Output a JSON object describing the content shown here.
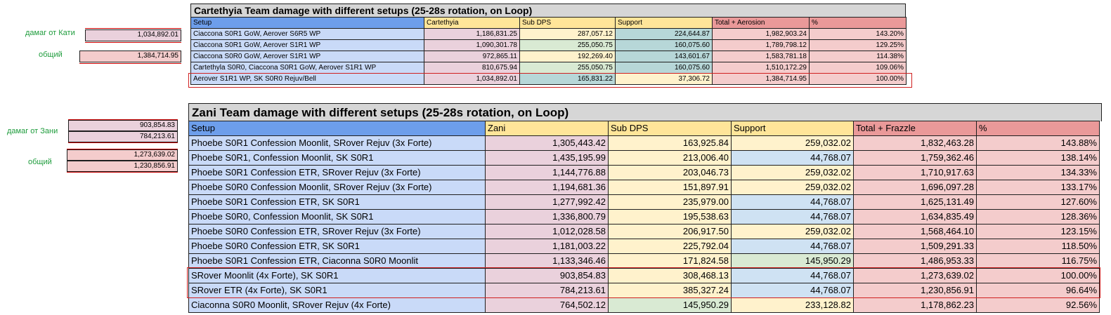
{
  "side": {
    "cart_damage_label": "дамаг от Кати",
    "cart_damage_value": "1,034,892.01",
    "cart_total_label": "общий",
    "cart_total_value": "1,384,714.95",
    "zani_damage_label": "дамаг от Зани",
    "zani_damage_values": [
      "903,854.83",
      "784,213.61"
    ],
    "zani_total_label": "общий",
    "zani_total_values": [
      "1,273,639.02",
      "1,230,856.91"
    ]
  },
  "cart_table": {
    "title": "Cartethyia Team damage with different setups (25-28s rotation, on Loop)",
    "headers": [
      "Setup",
      "Cartethyia",
      "Sub DPS",
      "Support",
      "Total + Aerosion",
      "%"
    ],
    "rows": [
      [
        "Ciaccona S0R1 GoW, Aerover S6R5 WP",
        "1,186,831.25",
        "287,057.12",
        "224,644.87",
        "1,982,903.24",
        "143.20%"
      ],
      [
        "Ciaccona S0R1 GoW, Aerover S1R1 WP",
        "1,090,301.78",
        "255,050.75",
        "160,075.60",
        "1,789,798.12",
        "129.25%"
      ],
      [
        "Ciaccona S0R0 GoW, Aerover S1R1 WP",
        "972,865.11",
        "192,269.40",
        "143,601.67",
        "1,583,781.18",
        "114.38%"
      ],
      [
        "Cartethyla S0R0, Ciaccona S0R1 GoW, Aerover S1R1 WP",
        "810,675.94",
        "255,050.75",
        "160,075.60",
        "1,510,172.29",
        "109.06%"
      ],
      [
        "Aerover S1R1 WP, SK S0R0 Rejuv/Bell",
        "1,034,892.01",
        "165,831.22",
        "37,306.72",
        "1,384,714.95",
        "100.00%"
      ]
    ]
  },
  "zani_table": {
    "title": "Zani Team damage with different setups (25-28s rotation, on Loop)",
    "headers": [
      "Setup",
      "Zani",
      "Sub DPS",
      "Support",
      "Total + Frazzle",
      "%"
    ],
    "rows": [
      [
        "Phoebe S0R1 Confession Moonlit, SRover Rejuv (3x Forte)",
        "1,305,443.42",
        "163,925.84",
        "259,032.02",
        "1,832,463.28",
        "143.88%"
      ],
      [
        "Phoebe S0R1, Confession Moonlit, SK S0R1",
        "1,435,195.99",
        "213,006.40",
        "44,768.07",
        "1,759,362.46",
        "138.14%"
      ],
      [
        "Phoebe S0R1 Confession ETR, SRover Rejuv (3x Forte)",
        "1,144,776.88",
        "203,046.73",
        "259,032.02",
        "1,710,917.63",
        "134.33%"
      ],
      [
        "Phoebe S0R0 Confession Moonlit, SRover Rejuv (3x Forte)",
        "1,194,681.36",
        "151,897.91",
        "259,032.02",
        "1,696,097.28",
        "133.17%"
      ],
      [
        "Phoebe S0R1 Confession ETR, SK S0R1",
        "1,277,992.42",
        "235,979.00",
        "44,768.07",
        "1,625,131.49",
        "127.60%"
      ],
      [
        "Phoebe S0R0, Confession Moonlit, SK S0R1",
        "1,336,800.79",
        "195,538.63",
        "44,768.07",
        "1,634,835.49",
        "128.36%"
      ],
      [
        "Phoebe S0R0 Confession ETR, SRover Rejuv (3x Forte)",
        "1,012,028.58",
        "206,917.50",
        "259,032.02",
        "1,568,464.10",
        "123.15%"
      ],
      [
        "Phoebe S0R0 Confession ETR, SK S0R1",
        "1,181,003.22",
        "225,792.04",
        "44,768.07",
        "1,509,291.33",
        "118.50%"
      ],
      [
        "Phoebe S0R1 Confession ETR, Ciaconna S0R0 Moonlit",
        "1,133,346.46",
        "171,824.58",
        "145,950.29",
        "1,486,953.33",
        "116.75%"
      ],
      [
        "SRover Moonlit (4x Forte), SK S0R1",
        "903,854.83",
        "308,468.13",
        "44,768.07",
        "1,273,639.02",
        "100.00%"
      ],
      [
        "SRover ETR (4x Forte), SK S0R1",
        "784,213.61",
        "385,327.24",
        "44,768.07",
        "1,230,856.91",
        "96.64%"
      ],
      [
        "Ciaconna S0R0 Moonlit, SRover Rejuv (4x Forte)",
        "764,502.12",
        "145,950.29",
        "233,128.82",
        "1,178,862.23",
        "92.56%"
      ]
    ]
  }
}
